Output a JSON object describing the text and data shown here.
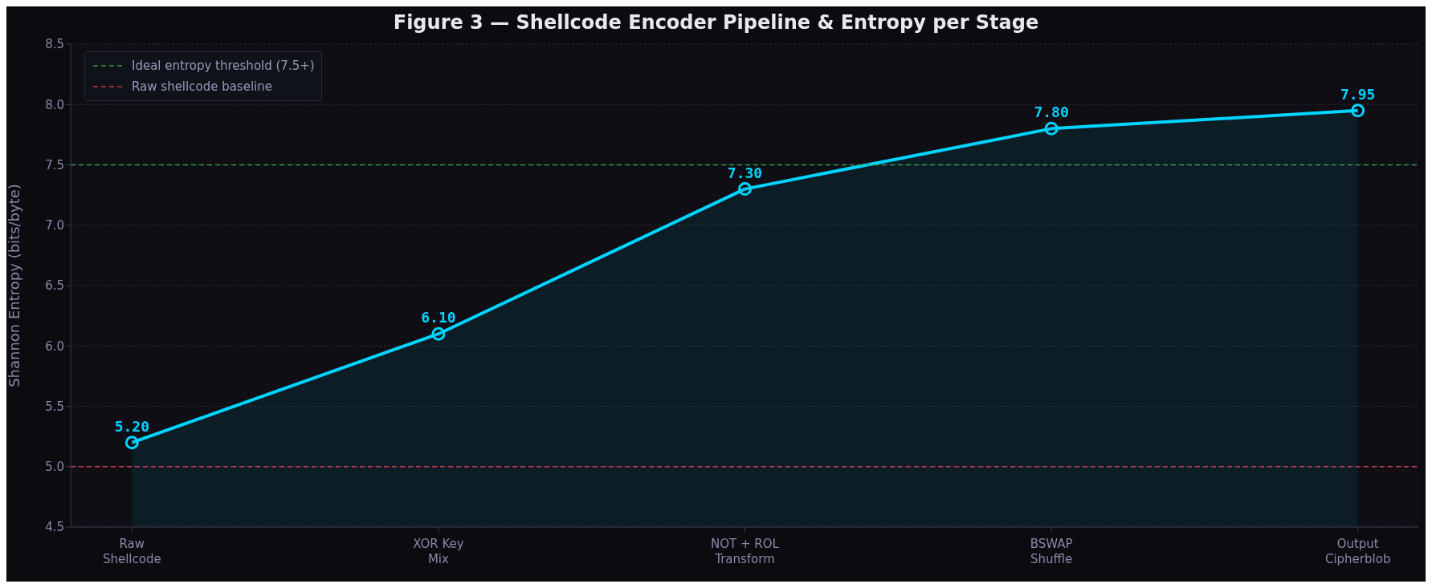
{
  "chart_data": {
    "type": "area",
    "title": "Figure 3 — Shellcode Encoder Pipeline & Entropy per Stage",
    "ylabel": "Shannon Entropy (bits/byte)",
    "categories": [
      "Raw\nShellcode",
      "XOR Key\nMix",
      "NOT + ROL\nTransform",
      "BSWAP\nShuffle",
      "Output\nCipherblob"
    ],
    "series": [
      {
        "color": "#00d4ff",
        "values": [
          5.2,
          6.1,
          7.3,
          7.8,
          7.95
        ],
        "value_labels": [
          "5.20",
          "6.10",
          "7.30",
          "7.80",
          "7.95"
        ]
      }
    ],
    "ylim": [
      4.5,
      8.5
    ],
    "yticks": [
      4.5,
      {
        "value": 5,
        "label": "5.0"
      },
      5.5,
      {
        "value": 6,
        "label": "6.0"
      },
      6.5,
      {
        "value": 7,
        "label": "7.0"
      },
      7.5,
      {
        "value": 8,
        "label": "8.0"
      },
      8.5
    ],
    "grid": "y",
    "legend": "top left",
    "marker": "circle",
    "line_style": "solid",
    "ref_lines": [
      {
        "axis": "y",
        "value": 7.5,
        "label": "Ideal entropy threshold (7.5+)",
        "color": "#2ea043",
        "line_style": "dashed"
      },
      {
        "axis": "y",
        "value": 5,
        "label": "Raw shellcode baseline",
        "color": "#c0394b",
        "line_style": "dashed"
      }
    ]
  }
}
